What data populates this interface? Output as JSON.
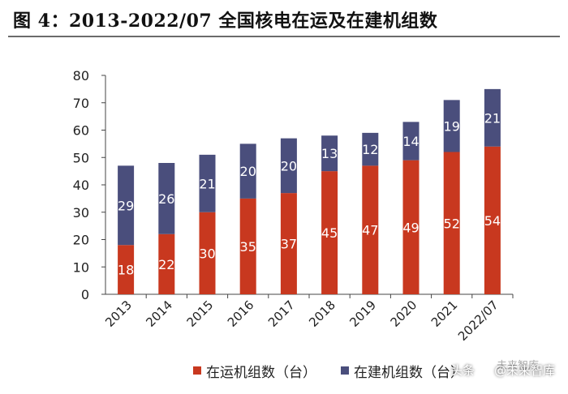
{
  "figure": {
    "title": "图  4：2013-2022/07 全国核电在运及在建机组数"
  },
  "chart_data": {
    "type": "bar",
    "stacked": true,
    "title": "图  4：2013-2022/07 全国核电在运及在建机组数",
    "categories": [
      "2013",
      "2014",
      "2015",
      "2016",
      "2017",
      "2018",
      "2019",
      "2020",
      "2021",
      "2022/07"
    ],
    "series": [
      {
        "name": "在运机组数（台）",
        "color": "#c8381f",
        "values": [
          18,
          22,
          30,
          35,
          37,
          45,
          47,
          49,
          52,
          54
        ]
      },
      {
        "name": "在建机组数（台）",
        "color": "#4a4e7c",
        "values": [
          29,
          26,
          21,
          20,
          20,
          13,
          12,
          14,
          19,
          21
        ]
      }
    ],
    "ylim": [
      0,
      80
    ],
    "yticks": [
      0,
      10,
      20,
      30,
      40,
      50,
      60,
      70,
      80
    ],
    "xlabel": "",
    "ylabel": "",
    "legend_position": "bottom"
  },
  "watermark": {
    "top": "未来智库",
    "text_prefix": "头条",
    "text_suffix": "@未来智库"
  }
}
